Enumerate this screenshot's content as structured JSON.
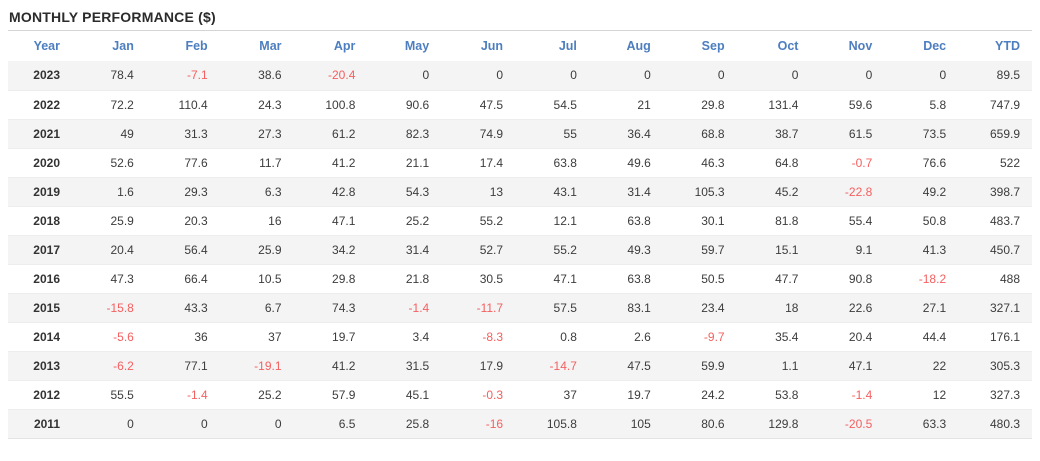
{
  "panel": {
    "title": "MONTHLY PERFORMANCE ($)"
  },
  "colors": {
    "header_text": "#4d7ebf",
    "negative_value": "#f55f5f",
    "positive_value": "#3c3c3c",
    "stripe_row_bg": "#f4f4f4",
    "title_text": "#2b2b2b",
    "divider": "#d4d4d4"
  },
  "table": {
    "columns": [
      "Year",
      "Jan",
      "Feb",
      "Mar",
      "Apr",
      "May",
      "Jun",
      "Jul",
      "Aug",
      "Sep",
      "Oct",
      "Nov",
      "Dec",
      "YTD"
    ],
    "rows": [
      {
        "year": "2023",
        "values": [
          "78.4",
          "-7.1",
          "38.6",
          "-20.4",
          "0",
          "0",
          "0",
          "0",
          "0",
          "0",
          "0",
          "0",
          "89.5"
        ]
      },
      {
        "year": "2022",
        "values": [
          "72.2",
          "110.4",
          "24.3",
          "100.8",
          "90.6",
          "47.5",
          "54.5",
          "21",
          "29.8",
          "131.4",
          "59.6",
          "5.8",
          "747.9"
        ]
      },
      {
        "year": "2021",
        "values": [
          "49",
          "31.3",
          "27.3",
          "61.2",
          "82.3",
          "74.9",
          "55",
          "36.4",
          "68.8",
          "38.7",
          "61.5",
          "73.5",
          "659.9"
        ]
      },
      {
        "year": "2020",
        "values": [
          "52.6",
          "77.6",
          "11.7",
          "41.2",
          "21.1",
          "17.4",
          "63.8",
          "49.6",
          "46.3",
          "64.8",
          "-0.7",
          "76.6",
          "522"
        ]
      },
      {
        "year": "2019",
        "values": [
          "1.6",
          "29.3",
          "6.3",
          "42.8",
          "54.3",
          "13",
          "43.1",
          "31.4",
          "105.3",
          "45.2",
          "-22.8",
          "49.2",
          "398.7"
        ]
      },
      {
        "year": "2018",
        "values": [
          "25.9",
          "20.3",
          "16",
          "47.1",
          "25.2",
          "55.2",
          "12.1",
          "63.8",
          "30.1",
          "81.8",
          "55.4",
          "50.8",
          "483.7"
        ]
      },
      {
        "year": "2017",
        "values": [
          "20.4",
          "56.4",
          "25.9",
          "34.2",
          "31.4",
          "52.7",
          "55.2",
          "49.3",
          "59.7",
          "15.1",
          "9.1",
          "41.3",
          "450.7"
        ]
      },
      {
        "year": "2016",
        "values": [
          "47.3",
          "66.4",
          "10.5",
          "29.8",
          "21.8",
          "30.5",
          "47.1",
          "63.8",
          "50.5",
          "47.7",
          "90.8",
          "-18.2",
          "488"
        ]
      },
      {
        "year": "2015",
        "values": [
          "-15.8",
          "43.3",
          "6.7",
          "74.3",
          "-1.4",
          "-11.7",
          "57.5",
          "83.1",
          "23.4",
          "18",
          "22.6",
          "27.1",
          "327.1"
        ]
      },
      {
        "year": "2014",
        "values": [
          "-5.6",
          "36",
          "37",
          "19.7",
          "3.4",
          "-8.3",
          "0.8",
          "2.6",
          "-9.7",
          "35.4",
          "20.4",
          "44.4",
          "176.1"
        ]
      },
      {
        "year": "2013",
        "values": [
          "-6.2",
          "77.1",
          "-19.1",
          "41.2",
          "31.5",
          "17.9",
          "-14.7",
          "47.5",
          "59.9",
          "1.1",
          "47.1",
          "22",
          "305.3"
        ]
      },
      {
        "year": "2012",
        "values": [
          "55.5",
          "-1.4",
          "25.2",
          "57.9",
          "45.1",
          "-0.3",
          "37",
          "19.7",
          "24.2",
          "53.8",
          "-1.4",
          "12",
          "327.3"
        ]
      },
      {
        "year": "2011",
        "values": [
          "0",
          "0",
          "0",
          "6.5",
          "25.8",
          "-16",
          "105.8",
          "105",
          "80.6",
          "129.8",
          "-20.5",
          "63.3",
          "480.3"
        ]
      }
    ]
  },
  "chart_data": {
    "type": "table",
    "title": "MONTHLY PERFORMANCE ($)",
    "categories": [
      "Jan",
      "Feb",
      "Mar",
      "Apr",
      "May",
      "Jun",
      "Jul",
      "Aug",
      "Sep",
      "Oct",
      "Nov",
      "Dec"
    ],
    "series": [
      {
        "name": "2023",
        "values": [
          78.4,
          -7.1,
          38.6,
          -20.4,
          0,
          0,
          0,
          0,
          0,
          0,
          0,
          0
        ],
        "ytd": 89.5
      },
      {
        "name": "2022",
        "values": [
          72.2,
          110.4,
          24.3,
          100.8,
          90.6,
          47.5,
          54.5,
          21,
          29.8,
          131.4,
          59.6,
          5.8
        ],
        "ytd": 747.9
      },
      {
        "name": "2021",
        "values": [
          49,
          31.3,
          27.3,
          61.2,
          82.3,
          74.9,
          55,
          36.4,
          68.8,
          38.7,
          61.5,
          73.5
        ],
        "ytd": 659.9
      },
      {
        "name": "2020",
        "values": [
          52.6,
          77.6,
          11.7,
          41.2,
          21.1,
          17.4,
          63.8,
          49.6,
          46.3,
          64.8,
          -0.7,
          76.6
        ],
        "ytd": 522
      },
      {
        "name": "2019",
        "values": [
          1.6,
          29.3,
          6.3,
          42.8,
          54.3,
          13,
          43.1,
          31.4,
          105.3,
          45.2,
          -22.8,
          49.2
        ],
        "ytd": 398.7
      },
      {
        "name": "2018",
        "values": [
          25.9,
          20.3,
          16,
          47.1,
          25.2,
          55.2,
          12.1,
          63.8,
          30.1,
          81.8,
          55.4,
          50.8
        ],
        "ytd": 483.7
      },
      {
        "name": "2017",
        "values": [
          20.4,
          56.4,
          25.9,
          34.2,
          31.4,
          52.7,
          55.2,
          49.3,
          59.7,
          15.1,
          9.1,
          41.3
        ],
        "ytd": 450.7
      },
      {
        "name": "2016",
        "values": [
          47.3,
          66.4,
          10.5,
          29.8,
          21.8,
          30.5,
          47.1,
          63.8,
          50.5,
          47.7,
          90.8,
          -18.2
        ],
        "ytd": 488
      },
      {
        "name": "2015",
        "values": [
          -15.8,
          43.3,
          6.7,
          74.3,
          -1.4,
          -11.7,
          57.5,
          83.1,
          23.4,
          18,
          22.6,
          27.1
        ],
        "ytd": 327.1
      },
      {
        "name": "2014",
        "values": [
          -5.6,
          36,
          37,
          19.7,
          3.4,
          -8.3,
          0.8,
          2.6,
          -9.7,
          35.4,
          20.4,
          44.4
        ],
        "ytd": 176.1
      },
      {
        "name": "2013",
        "values": [
          -6.2,
          77.1,
          -19.1,
          41.2,
          31.5,
          17.9,
          -14.7,
          47.5,
          59.9,
          1.1,
          47.1,
          22
        ],
        "ytd": 305.3
      },
      {
        "name": "2012",
        "values": [
          55.5,
          -1.4,
          25.2,
          57.9,
          45.1,
          -0.3,
          37,
          19.7,
          24.2,
          53.8,
          -1.4,
          12
        ],
        "ytd": 327.3
      },
      {
        "name": "2011",
        "values": [
          0,
          0,
          0,
          6.5,
          25.8,
          -16,
          105.8,
          105,
          80.6,
          129.8,
          -20.5,
          63.3
        ],
        "ytd": 480.3
      }
    ],
    "negative_values_shown_in_red": true
  }
}
